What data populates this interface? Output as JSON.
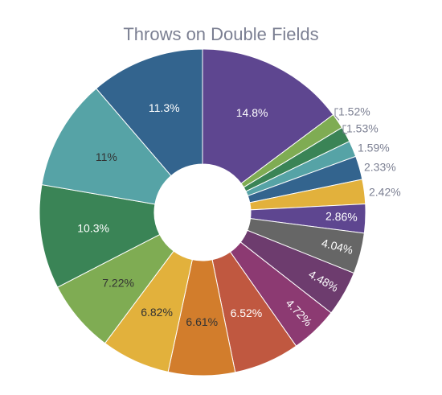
{
  "chart_data": {
    "type": "pie",
    "title": "Throws on Double Fields",
    "hole": true,
    "slices": [
      {
        "label": "14.8%",
        "value": 14.8,
        "color": "#5e4690",
        "text_color": "#ffffff",
        "label_side": "inside"
      },
      {
        "label": "1.52%",
        "value": 1.52,
        "color": "#7fac53",
        "text_color": "#7b7f92",
        "label_side": "outside"
      },
      {
        "label": "1.53%",
        "value": 1.53,
        "color": "#3a8456",
        "text_color": "#7b7f92",
        "label_side": "outside"
      },
      {
        "label": "1.59%",
        "value": 1.59,
        "color": "#56a3a6",
        "text_color": "#7b7f92",
        "label_side": "outside"
      },
      {
        "label": "2.33%",
        "value": 2.33,
        "color": "#33648e",
        "text_color": "#7b7f92",
        "label_side": "outside"
      },
      {
        "label": "2.42%",
        "value": 2.42,
        "color": "#e2b13c",
        "text_color": "#7b7f92",
        "label_side": "outside"
      },
      {
        "label": "2.86%",
        "value": 2.86,
        "color": "#5e4690",
        "text_color": "#ffffff",
        "label_side": "inside"
      },
      {
        "label": "4.04%",
        "value": 4.04,
        "color": "#666666",
        "text_color": "#ffffff",
        "label_side": "inside"
      },
      {
        "label": "4.48%",
        "value": 4.48,
        "color": "#6d3c6e",
        "text_color": "#ffffff",
        "label_side": "inside"
      },
      {
        "label": "4.72%",
        "value": 4.72,
        "color": "#8c3a72",
        "text_color": "#ffffff",
        "label_side": "inside"
      },
      {
        "label": "6.52%",
        "value": 6.52,
        "color": "#c05840",
        "text_color": "#ffffff",
        "label_side": "inside"
      },
      {
        "label": "6.61%",
        "value": 6.61,
        "color": "#d27d2c",
        "text_color": "#333333",
        "label_side": "inside"
      },
      {
        "label": "6.82%",
        "value": 6.82,
        "color": "#e2b13c",
        "text_color": "#333333",
        "label_side": "inside"
      },
      {
        "label": "7.22%",
        "value": 7.22,
        "color": "#7fac53",
        "text_color": "#333333",
        "label_side": "inside"
      },
      {
        "label": "10.3%",
        "value": 10.3,
        "color": "#3a8456",
        "text_color": "#ffffff",
        "label_side": "inside"
      },
      {
        "label": "11%",
        "value": 11.0,
        "color": "#56a3a6",
        "text_color": "#333333",
        "label_side": "inside"
      },
      {
        "label": "11.3%",
        "value": 11.3,
        "color": "#33648e",
        "text_color": "#ffffff",
        "label_side": "inside"
      }
    ]
  }
}
